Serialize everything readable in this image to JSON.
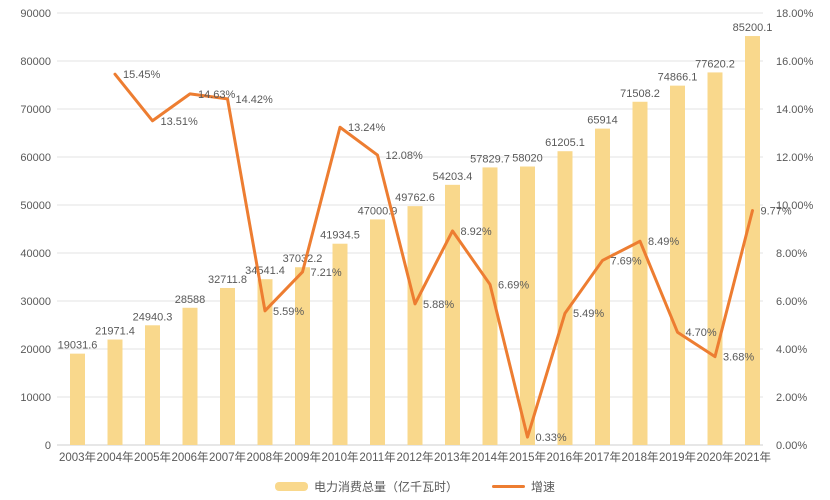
{
  "chart_data": {
    "type": "bar+line",
    "categories": [
      "2003年",
      "2004年",
      "2005年",
      "2006年",
      "2007年",
      "2008年",
      "2009年",
      "2010年",
      "2011年",
      "2012年",
      "2013年",
      "2014年",
      "2015年",
      "2016年",
      "2017年",
      "2018年",
      "2019年",
      "2020年",
      "2021年"
    ],
    "series": [
      {
        "name": "电力消费总量（亿千瓦时）",
        "type": "bar",
        "axis": "left",
        "color": "#F9D88C",
        "values": [
          19031.6,
          21971.4,
          24940.3,
          28588,
          32711.8,
          34541.4,
          37032.2,
          41934.5,
          47000.9,
          49762.6,
          54203.4,
          57829.7,
          58020,
          61205.1,
          65914,
          71508.2,
          74866.1,
          77620.2,
          85200.1
        ],
        "labels": [
          "19031.6",
          "21971.4",
          "24940.3",
          "28588",
          "32711.8",
          "34541.4",
          "37032.2",
          "41934.5",
          "47000.9",
          "49762.6",
          "54203.4",
          "57829.7",
          "58020",
          "61205.1",
          "65914",
          "71508.2",
          "74866.1",
          "77620.2",
          "85200.1"
        ]
      },
      {
        "name": "增速",
        "type": "line",
        "axis": "right",
        "color": "#ED7D31",
        "values": [
          null,
          15.45,
          13.51,
          14.63,
          14.42,
          5.59,
          7.21,
          13.24,
          12.08,
          5.88,
          8.92,
          6.69,
          0.33,
          5.49,
          7.69,
          8.49,
          4.7,
          3.68,
          9.77
        ],
        "labels": [
          null,
          "15.45%",
          "13.51%",
          "14.63%",
          "14.42%",
          "5.59%",
          "7.21%",
          "13.24%",
          "12.08%",
          "5.88%",
          "8.92%",
          "6.69%",
          "0.33%",
          "5.49%",
          "7.69%",
          "8.49%",
          "4.70%",
          "3.68%",
          "9.77%"
        ]
      }
    ],
    "left_axis": {
      "min": 0,
      "max": 90000,
      "step": 10000,
      "tick_labels": [
        "0",
        "10000",
        "20000",
        "30000",
        "40000",
        "50000",
        "60000",
        "70000",
        "80000",
        "90000"
      ]
    },
    "right_axis": {
      "min": 0,
      "max": 18,
      "step": 2,
      "tick_labels": [
        "0.00%",
        "2.00%",
        "4.00%",
        "6.00%",
        "8.00%",
        "10.00%",
        "12.00%",
        "14.00%",
        "16.00%",
        "18.00%"
      ]
    },
    "grid": true,
    "legend_position": "bottom",
    "text_color": "#595959",
    "grid_color": "#E3E3E3",
    "axis_line_color": "#CFCFCF",
    "background": "#FFFFFF"
  }
}
